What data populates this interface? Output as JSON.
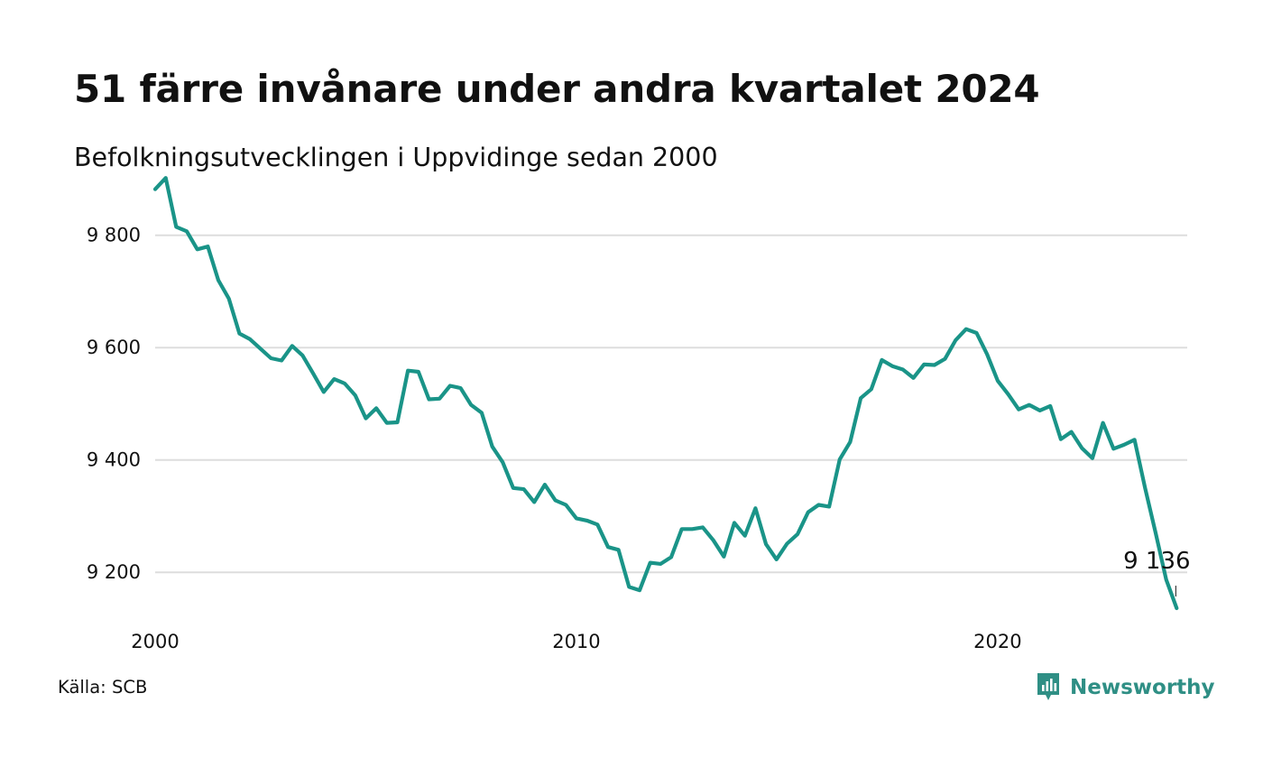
{
  "header": {
    "title": "51 färre invånare under andra kvartalet 2024",
    "subtitle": "Befolkningsutvecklingen i Uppvidinge sedan 2000"
  },
  "footer": {
    "source": "Källa: SCB",
    "brand": "Newsworthy",
    "brand_icon": "bar-chart-speech-bubble-icon"
  },
  "colors": {
    "line": "#1a9488",
    "grid": "#dddddd",
    "text": "#111111",
    "brand": "#2f8f85"
  },
  "chart_data": {
    "type": "line",
    "grid": true,
    "grid_axis": "y",
    "legend": "none",
    "xlim": [
      2000,
      2024.5
    ],
    "ylim": [
      9120,
      9920
    ],
    "x_ticks": [
      2000,
      2010,
      2020
    ],
    "x_tick_labels": [
      "2000",
      "2010",
      "2020"
    ],
    "y_ticks": [
      9200,
      9400,
      9600,
      9800
    ],
    "y_tick_labels": [
      "9 200",
      "9 400",
      "9 600",
      "9 800"
    ],
    "end_label": "9 136",
    "series": [
      {
        "x": [
          2000.0,
          2000.25,
          2000.5,
          2000.75,
          2001.0,
          2001.25,
          2001.5,
          2001.75,
          2002.0,
          2002.25,
          2002.5,
          2002.75,
          2003.0,
          2003.25,
          2003.5,
          2003.75,
          2004.0,
          2004.25,
          2004.5,
          2004.75,
          2005.0,
          2005.25,
          2005.5,
          2005.75,
          2006.0,
          2006.25,
          2006.5,
          2006.75,
          2007.0,
          2007.25,
          2007.5,
          2007.75,
          2008.0,
          2008.25,
          2008.5,
          2008.75,
          2009.0,
          2009.25,
          2009.5,
          2009.75,
          2010.0,
          2010.25,
          2010.5,
          2010.75,
          2011.0,
          2011.25,
          2011.5,
          2011.75,
          2012.0,
          2012.25,
          2012.5,
          2012.75,
          2013.0,
          2013.25,
          2013.5,
          2013.75,
          2014.0,
          2014.25,
          2014.5,
          2014.75,
          2015.0,
          2015.25,
          2015.5,
          2015.75,
          2016.0,
          2016.25,
          2016.5,
          2016.75,
          2017.0,
          2017.25,
          2017.5,
          2017.75,
          2018.0,
          2018.25,
          2018.5,
          2018.75,
          2019.0,
          2019.25,
          2019.5,
          2019.75,
          2020.0,
          2020.25,
          2020.5,
          2020.75,
          2021.0,
          2021.25,
          2021.5,
          2021.75,
          2022.0,
          2022.25,
          2022.5,
          2022.75,
          2023.0,
          2023.25,
          2023.5,
          2023.75,
          2024.0,
          2024.25
        ],
        "y": [
          9882,
          9902,
          9815,
          9807,
          9775,
          9780,
          9720,
          9687,
          9625,
          9615,
          9598,
          9581,
          9577,
          9603,
          9586,
          9554,
          9521,
          9544,
          9536,
          9515,
          9474,
          9492,
          9466,
          9467,
          9559,
          9557,
          9508,
          9509,
          9532,
          9528,
          9498,
          9484,
          9424,
          9396,
          9350,
          9348,
          9325,
          9356,
          9328,
          9320,
          9296,
          9292,
          9285,
          9245,
          9240,
          9174,
          9168,
          9217,
          9215,
          9227,
          9277,
          9277,
          9280,
          9257,
          9228,
          9288,
          9265,
          9314,
          9250,
          9223,
          9251,
          9268,
          9307,
          9320,
          9317,
          9401,
          9432,
          9510,
          9526,
          9578,
          9567,
          9561,
          9546,
          9570,
          9569,
          9580,
          9613,
          9633,
          9626,
          9588,
          9541,
          9517,
          9490,
          9498,
          9488,
          9496,
          9437,
          9450,
          9421,
          9403,
          9466,
          9420,
          9427,
          9436,
          9350,
          9270,
          9187,
          9136
        ]
      }
    ]
  }
}
